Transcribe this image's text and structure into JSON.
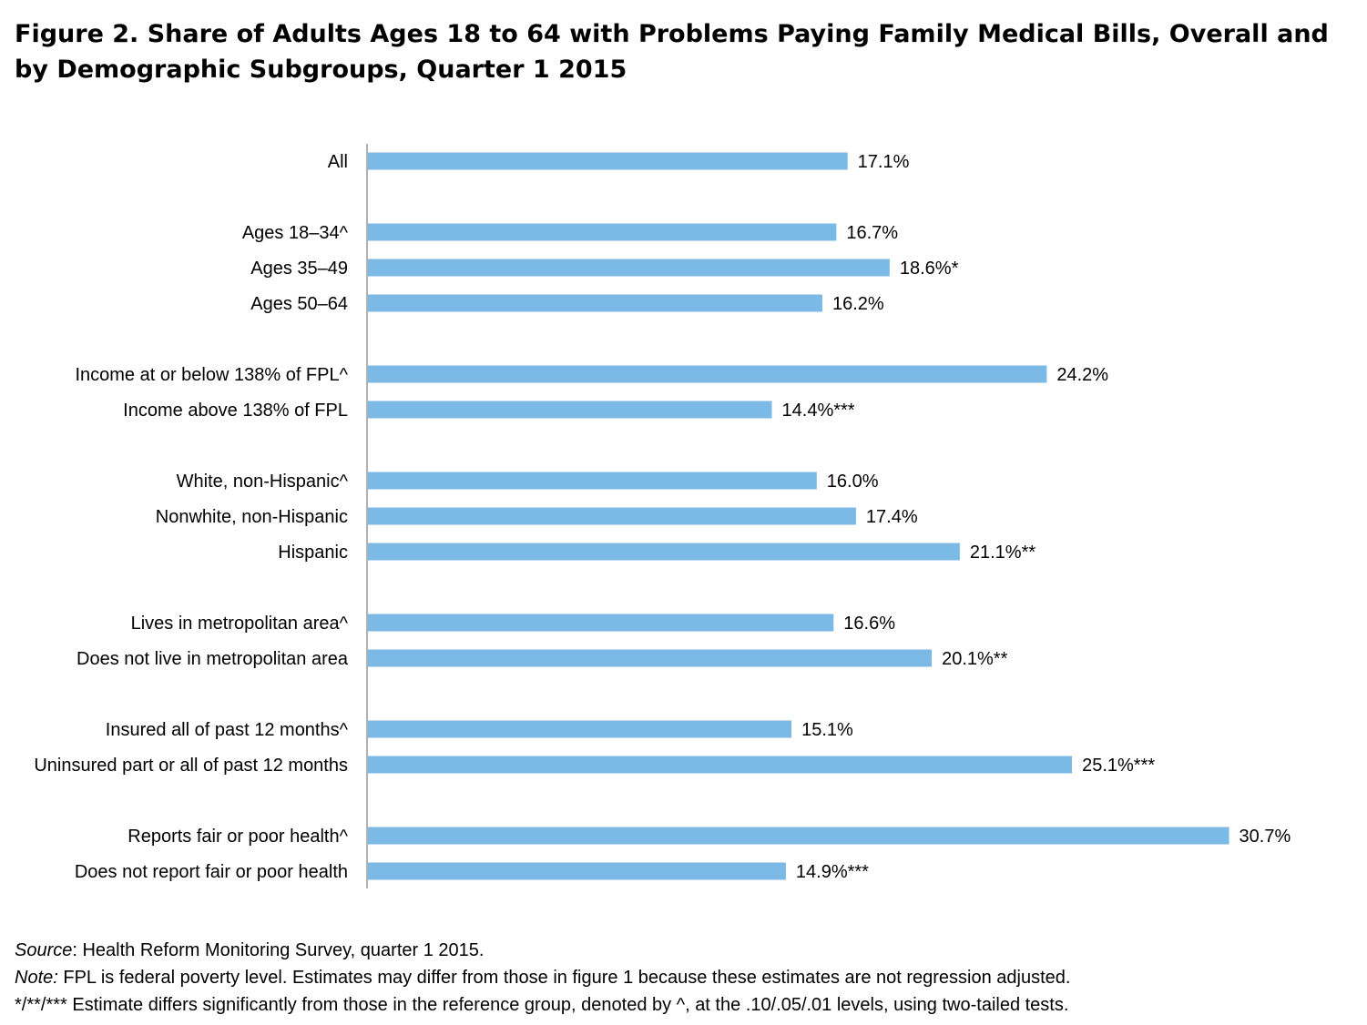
{
  "title": "Figure 2. Share of Adults Ages 18 to 64 with Problems Paying Family Medical Bills, Overall and by Demographic Subgroups, Quarter 1 2015",
  "colors": {
    "bar": "#7BBAE6",
    "axis": "#7f7f7f"
  },
  "chart_data": {
    "type": "bar",
    "orientation": "horizontal",
    "xlim": [
      0,
      32
    ],
    "grid": false,
    "categories": [
      "All",
      "Ages 18–34^",
      "Ages 35–49",
      "Ages 50–64",
      "Income at or below 138% of FPL^",
      "Income above 138% of FPL",
      "White, non-Hispanic^",
      "Nonwhite, non-Hispanic",
      "Hispanic",
      "Lives in metropolitan area^",
      "Does not live in metropolitan area",
      "Insured all of past 12 months^",
      "Uninsured part or all of past 12 months",
      "Reports fair or poor health^",
      "Does not report fair or poor health"
    ],
    "groups": [
      [
        0
      ],
      [
        1,
        2,
        3
      ],
      [
        4,
        5
      ],
      [
        6,
        7,
        8
      ],
      [
        9,
        10
      ],
      [
        11,
        12
      ],
      [
        13,
        14
      ]
    ],
    "values": [
      17.1,
      16.7,
      18.6,
      16.2,
      24.2,
      14.4,
      16.0,
      17.4,
      21.1,
      16.6,
      20.1,
      15.1,
      25.1,
      30.7,
      14.9
    ],
    "data_labels": [
      "17.1%",
      "16.7%",
      "18.6%*",
      "16.2%",
      "24.2%",
      "14.4%***",
      "16.0%",
      "17.4%",
      "21.1%**",
      "16.6%",
      "20.1%**",
      "15.1%",
      "25.1%***",
      "30.7%",
      "14.9%***"
    ]
  },
  "notes": {
    "source_label": "Source",
    "source_text": ": Health Reform Monitoring Survey, quarter 1 2015.",
    "note_label": "Note:",
    "note_text": " FPL is federal poverty level. Estimates may differ from those in figure 1 because these estimates are not regression adjusted.",
    "significance_text": "*/**/*** Estimate differs significantly from those in the reference group, denoted by ^, at the .10/.05/.01 levels, using two-tailed tests."
  }
}
